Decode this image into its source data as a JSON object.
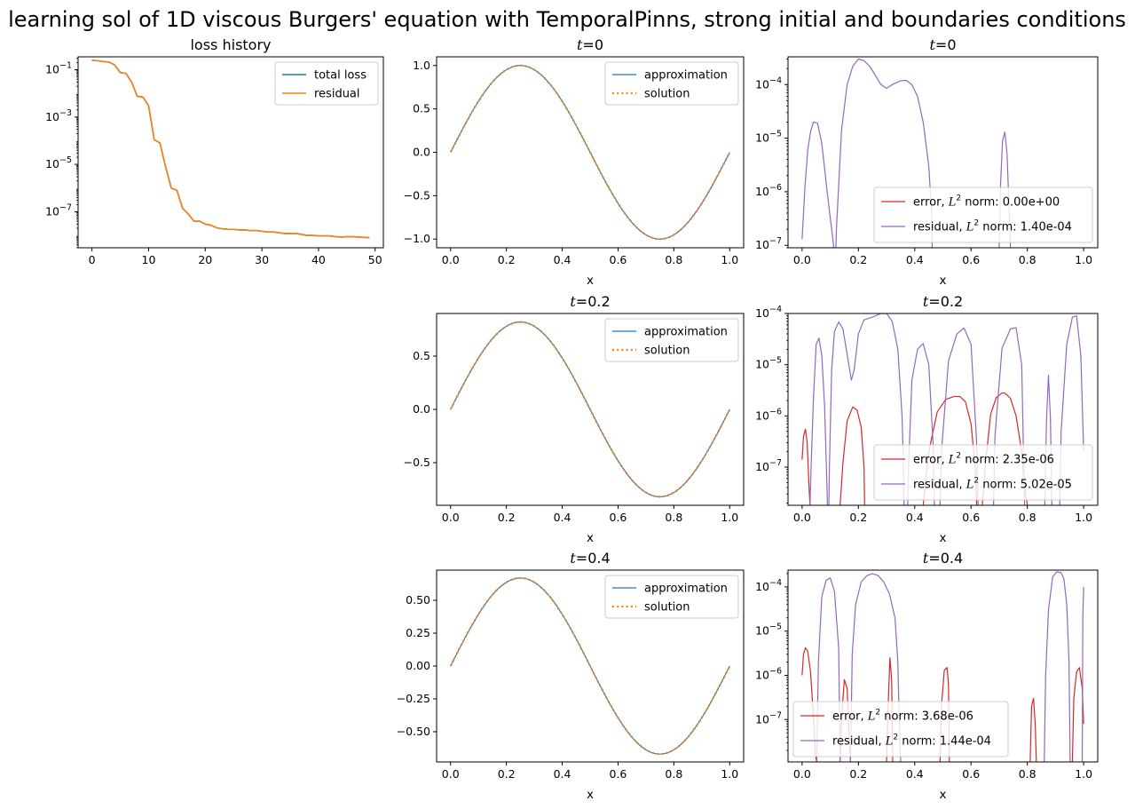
{
  "figure": {
    "suptitle": "learning sol of 1D viscous Burgers' equation with TemporalPinns, strong initial and boundaries conditions"
  },
  "colors": {
    "total_loss": "#1f77b4",
    "residual_loss": "#ff7f0e",
    "approximation": "#1f77b4",
    "solution": "#ff7f0e",
    "error": "#d62728",
    "residual": "#9467bd"
  },
  "chart_data": [
    {
      "id": "loss",
      "type": "line",
      "title": "loss history",
      "xlabel": "",
      "yscale": "log",
      "xlim": [
        -2.45,
        51.45
      ],
      "ylim": [
        3e-09,
        0.35
      ],
      "xticks": [
        0,
        10,
        20,
        30,
        40,
        50
      ],
      "yticks": [
        {
          "value": 0.1,
          "label": "10^-1"
        },
        {
          "value": 0.001,
          "label": "10^-3"
        },
        {
          "value": 1e-05,
          "label": "10^-5"
        },
        {
          "value": 1e-07,
          "label": "10^-7"
        }
      ],
      "legend_position": "upper right",
      "x": [
        0,
        1,
        2,
        3,
        4,
        5,
        6,
        7,
        8,
        9,
        10,
        11,
        12,
        13,
        14,
        15,
        16,
        17,
        18,
        19,
        20,
        21,
        22,
        23,
        24,
        25,
        26,
        27,
        28,
        29,
        30,
        31,
        32,
        33,
        34,
        35,
        36,
        37,
        38,
        39,
        40,
        41,
        42,
        43,
        44,
        45,
        46,
        47,
        48,
        49
      ],
      "series": [
        {
          "name": "total loss",
          "color_key": "total_loss",
          "width": 1.6,
          "dash": "",
          "values": [
            0.25,
            0.24,
            0.22,
            0.21,
            0.16,
            0.075,
            0.07,
            0.03,
            0.0075,
            0.007,
            0.003,
            0.00011,
            8e-05,
            8e-06,
            1e-06,
            8e-07,
            1.4e-07,
            8e-08,
            4e-08,
            4e-08,
            3e-08,
            2.7e-08,
            2.1e-08,
            1.9e-08,
            1.8e-08,
            1.8e-08,
            1.7e-08,
            1.7e-08,
            1.6e-08,
            1.6e-08,
            1.5e-08,
            1.4e-08,
            1.4e-08,
            1.3e-08,
            1.2e-08,
            1.2e-08,
            1.2e-08,
            1.1e-08,
            1e-08,
            1e-08,
            9.5e-09,
            9.5e-09,
            9.5e-09,
            8.8e-09,
            8.5e-09,
            8.8e-09,
            8.8e-09,
            8.5e-09,
            8.2e-09,
            8e-09
          ]
        },
        {
          "name": "residual",
          "color_key": "residual_loss",
          "width": 1.6,
          "dash": "",
          "values": [
            0.25,
            0.24,
            0.22,
            0.21,
            0.16,
            0.075,
            0.07,
            0.03,
            0.0075,
            0.007,
            0.003,
            0.00011,
            8e-05,
            8e-06,
            1e-06,
            8e-07,
            1.4e-07,
            8e-08,
            4e-08,
            4e-08,
            3e-08,
            2.7e-08,
            2.1e-08,
            1.9e-08,
            1.8e-08,
            1.8e-08,
            1.7e-08,
            1.7e-08,
            1.6e-08,
            1.6e-08,
            1.5e-08,
            1.4e-08,
            1.4e-08,
            1.3e-08,
            1.2e-08,
            1.2e-08,
            1.2e-08,
            1.1e-08,
            1e-08,
            1e-08,
            9.5e-09,
            9.5e-09,
            9.5e-09,
            8.8e-09,
            8.5e-09,
            8.8e-09,
            8.8e-09,
            8.5e-09,
            8.2e-09,
            8e-09
          ]
        }
      ]
    },
    {
      "id": "sol0",
      "type": "line",
      "title_var": "t",
      "title_value": "=0",
      "xlabel": "x",
      "xlim": [
        -0.05,
        1.05
      ],
      "ylim": [
        -1.1,
        1.1
      ],
      "xticks": [
        "0.0",
        "0.2",
        "0.4",
        "0.6",
        "0.8",
        "1.0"
      ],
      "yticks": [
        "-1.0",
        "-0.5",
        "0.0",
        "0.5",
        "1.0"
      ],
      "legend_position": "upper right",
      "function": "amplitude * sin(2*pi*x), x from 0 to 1",
      "amplitude": 1.0,
      "series": [
        {
          "name": "approximation",
          "color_key": "approximation"
        },
        {
          "name": "solution",
          "color_key": "solution"
        }
      ]
    },
    {
      "id": "sol1",
      "type": "line",
      "title_var": "t",
      "title_value": "=0.2",
      "xlabel": "x",
      "xlim": [
        -0.05,
        1.05
      ],
      "ylim": [
        -0.9,
        0.9
      ],
      "xticks": [
        "0.0",
        "0.2",
        "0.4",
        "0.6",
        "0.8",
        "1.0"
      ],
      "yticks": [
        "-0.5",
        "0.0",
        "0.5"
      ],
      "legend_position": "upper right",
      "function": "amplitude * sin(2*pi*x), x from 0 to 1",
      "amplitude": 0.82,
      "series": [
        {
          "name": "approximation",
          "color_key": "approximation"
        },
        {
          "name": "solution",
          "color_key": "solution"
        }
      ]
    },
    {
      "id": "sol2",
      "type": "line",
      "title_var": "t",
      "title_value": "=0.4",
      "xlabel": "x",
      "xlim": [
        -0.05,
        1.05
      ],
      "ylim": [
        -0.73,
        0.73
      ],
      "xticks": [
        "0.0",
        "0.2",
        "0.4",
        "0.6",
        "0.8",
        "1.0"
      ],
      "yticks": [
        "-0.50",
        "-0.25",
        "0.00",
        "0.25",
        "0.50"
      ],
      "legend_position": "upper right",
      "function": "amplitude * sin(2*pi*x), x from 0 to 1",
      "amplitude": 0.67,
      "series": [
        {
          "name": "approximation",
          "color_key": "approximation"
        },
        {
          "name": "solution",
          "color_key": "solution"
        }
      ]
    },
    {
      "id": "err0",
      "type": "line",
      "yscale": "log",
      "title_var": "t",
      "title_value": "=0",
      "xlabel": "x",
      "xlim": [
        -0.05,
        1.05
      ],
      "ylim": [
        9e-08,
        0.00033
      ],
      "xticks": [
        "0.0",
        "0.2",
        "0.4",
        "0.6",
        "0.8",
        "1.0"
      ],
      "yticks": [
        {
          "value": 0.0001,
          "label": "10^-4"
        },
        {
          "value": 1e-05,
          "label": "10^-5"
        },
        {
          "value": 1e-06,
          "label": "10^-6"
        },
        {
          "value": 1e-07,
          "label": "10^-7"
        }
      ],
      "legend_position": "lower right",
      "series": [
        {
          "name_prefix": "error, ",
          "name_var": "L",
          "name_sup": "2",
          "name_suffix": " norm: 0.00e+00",
          "color_key": "error",
          "x": [],
          "values": []
        },
        {
          "name_prefix": "residual, ",
          "name_var": "L",
          "name_sup": "2",
          "name_suffix": " norm: 1.40e-04",
          "color_key": "residual",
          "x": [
            0.0,
            0.01,
            0.02,
            0.03,
            0.04,
            0.055,
            0.07,
            0.09,
            0.11,
            0.112,
            "gap",
            0.12,
            0.122,
            0.14,
            0.16,
            0.18,
            0.2,
            0.22,
            0.24,
            0.26,
            0.28,
            0.3,
            0.32,
            0.35,
            0.37,
            0.39,
            0.41,
            0.43,
            0.45,
            0.46,
            0.462,
            "gap",
            0.7,
            0.705,
            0.712,
            0.72,
            0.728,
            0.735,
            0.74
          ],
          "values": [
            1.3e-07,
            1.2e-06,
            6e-06,
            1.3e-05,
            2e-05,
            1.9e-05,
            8e-06,
            9e-07,
            1.2e-07,
            9e-08,
            null,
            9e-08,
            2e-07,
            1.4e-05,
            0.0001,
            0.00022,
            0.0003,
            0.00028,
            0.00022,
            0.00015,
            0.0001,
            8.5e-05,
            0.0001,
            0.000118,
            0.00012,
            0.0001,
            6e-05,
            2e-05,
            3e-06,
            4e-07,
            9e-08,
            null,
            9e-08,
            1.4e-06,
            9e-06,
            1.3e-05,
            5e-06,
            5e-07,
            9e-08
          ]
        }
      ]
    },
    {
      "id": "err1",
      "type": "line",
      "yscale": "log",
      "title_var": "t",
      "title_value": "=0.2",
      "xlabel": "x",
      "xlim": [
        -0.05,
        1.05
      ],
      "ylim": [
        1.8e-08,
        0.0001
      ],
      "xticks": [
        "0.0",
        "0.2",
        "0.4",
        "0.6",
        "0.8",
        "1.0"
      ],
      "yticks": [
        {
          "value": 0.0001,
          "label": "10^-4"
        },
        {
          "value": 1e-05,
          "label": "10^-5"
        },
        {
          "value": 1e-06,
          "label": "10^-6"
        },
        {
          "value": 1e-07,
          "label": "10^-7"
        }
      ],
      "legend_position": "lower right",
      "series": [
        {
          "name_prefix": "error, ",
          "name_var": "L",
          "name_sup": "2",
          "name_suffix": " norm: 2.35e-06",
          "color_key": "error",
          "x": [
            0.0,
            0.005,
            0.012,
            0.018,
            0.024,
            0.028,
            "gap",
            0.135,
            0.145,
            0.16,
            0.18,
            0.195,
            0.21,
            0.22,
            0.222,
            "gap",
            0.43,
            0.45,
            0.48,
            0.51,
            0.54,
            0.56,
            0.58,
            0.6,
            0.615,
            0.62,
            "gap",
            0.64,
            0.65,
            0.67,
            0.69,
            0.71,
            0.72,
            0.74,
            0.76,
            0.78,
            0.79,
            0.8
          ],
          "values": [
            1.4e-07,
            4e-07,
            5.5e-07,
            3e-07,
            5e-08,
            1.8e-08,
            null,
            1.8e-08,
            1.2e-07,
            8e-07,
            1.5e-06,
            1.3e-06,
            6e-07,
            1e-07,
            1.8e-08,
            null,
            1.8e-08,
            2e-07,
            1.2e-06,
            2.1e-06,
            2.4e-06,
            2.4e-06,
            1.9e-06,
            7e-07,
            1e-07,
            1.8e-08,
            null,
            1.8e-08,
            1e-07,
            1.1e-06,
            2.3e-06,
            2.8e-06,
            2.8e-06,
            2.2e-06,
            1e-06,
            2e-07,
            4e-08,
            1.8e-08
          ]
        },
        {
          "name_prefix": "residual, ",
          "name_var": "L",
          "name_sup": "2",
          "name_suffix": " norm: 5.02e-05",
          "color_key": "residual",
          "x": [
            0.028,
            0.032,
            0.04,
            0.05,
            0.06,
            0.07,
            0.08,
            0.088,
            0.09,
            "gap",
            0.095,
            0.097,
            0.105,
            0.115,
            0.13,
            0.145,
            0.16,
            0.175,
            0.185,
            0.2,
            0.22,
            0.25,
            0.28,
            0.3,
            0.32,
            0.34,
            0.355,
            0.36,
            0.362,
            "gap",
            0.375,
            0.378,
            0.39,
            0.41,
            0.43,
            0.45,
            0.465,
            0.47,
            "gap",
            0.49,
            0.495,
            0.52,
            0.55,
            0.575,
            0.6,
            0.62,
            0.625,
            "gap",
            0.68,
            0.685,
            0.71,
            0.74,
            0.76,
            0.78,
            0.79,
            "gap",
            0.862,
            0.868,
            0.875,
            0.882,
            0.887,
            "gap",
            0.915,
            0.92,
            0.94,
            0.96,
            0.975,
            0.99,
            1.0
          ],
          "values": [
            1.8e-08,
            1e-07,
            2e-06,
            2.5e-05,
            3.3e-05,
            1.5e-05,
            1.5e-06,
            5e-08,
            1.8e-08,
            null,
            1.8e-08,
            1e-07,
            8e-06,
            4.5e-05,
            6.8e-05,
            5e-05,
            1.6e-05,
            5e-06,
            8e-06,
            4e-05,
            7.5e-05,
            8.5e-05,
            0.0001,
            0.0001,
            7e-05,
            2e-05,
            1e-06,
            1e-07,
            1.8e-08,
            null,
            1.8e-08,
            1e-07,
            5e-06,
            2e-05,
            2.6e-05,
            1e-05,
            3e-07,
            1.8e-08,
            null,
            1.8e-08,
            2e-07,
            1.2e-05,
            4e-05,
            5.2e-05,
            2.5e-05,
            3e-07,
            1.8e-08,
            null,
            1.8e-08,
            4e-07,
            2.1e-05,
            5e-05,
            5.3e-05,
            1e-05,
            1.8e-08,
            null,
            1.8e-08,
            8e-07,
            6.2e-06,
            9e-07,
            1.8e-08,
            null,
            1.8e-08,
            5e-07,
            2.5e-05,
            8.5e-05,
            9e-05,
            1.5e-05,
            2e-07
          ]
        }
      ]
    },
    {
      "id": "err2",
      "type": "line",
      "yscale": "log",
      "title_var": "t",
      "title_value": "=0.4",
      "xlabel": "x",
      "xlim": [
        -0.05,
        1.05
      ],
      "ylim": [
        1.1e-08,
        0.00024
      ],
      "xticks": [
        "0.0",
        "0.2",
        "0.4",
        "0.6",
        "0.8",
        "1.0"
      ],
      "yticks": [
        {
          "value": 0.0001,
          "label": "10^-4"
        },
        {
          "value": 1e-05,
          "label": "10^-5"
        },
        {
          "value": 1e-06,
          "label": "10^-6"
        },
        {
          "value": 1e-07,
          "label": "10^-7"
        }
      ],
      "legend_position": "lower left",
      "series": [
        {
          "name_prefix": "error, ",
          "name_var": "L",
          "name_sup": "2",
          "name_suffix": " norm: 3.68e-06",
          "color_key": "error",
          "x": [
            0.0,
            0.005,
            0.012,
            0.02,
            0.03,
            0.04,
            0.048,
            0.052,
            "gap",
            0.135,
            0.14,
            0.15,
            0.16,
            0.165,
            0.172,
            "gap",
            0.3,
            0.305,
            0.312,
            0.318,
            0.322,
            "gap",
            0.49,
            0.495,
            0.505,
            0.515,
            0.52,
            0.523,
            "gap",
            0.81,
            0.815,
            0.822,
            0.828,
            0.832,
            "gap",
            0.96,
            0.965,
            0.975,
            0.985,
            0.995,
            1.0
          ],
          "values": [
            1e-06,
            3e-06,
            4.2e-06,
            3.5e-06,
            1.2e-06,
            1.2e-07,
            1.5e-08,
            1.1e-08,
            null,
            1.1e-08,
            1e-07,
            8e-07,
            5e-07,
            8e-08,
            1.1e-08,
            null,
            1.1e-08,
            1.6e-07,
            2.5e-06,
            8e-07,
            1.1e-08,
            null,
            1.1e-08,
            2e-07,
            1.3e-06,
            1.5e-06,
            6e-07,
            1.1e-08,
            null,
            1.1e-08,
            2e-07,
            3e-07,
            8e-08,
            1.1e-08,
            null,
            1.1e-08,
            3e-07,
            1.2e-06,
            1.5e-06,
            5e-07,
            8e-08
          ]
        },
        {
          "name_prefix": "residual, ",
          "name_var": "L",
          "name_sup": "2",
          "name_suffix": " norm: 1.44e-04",
          "color_key": "residual",
          "x": [
            0.052,
            0.058,
            0.07,
            0.085,
            0.1,
            0.115,
            0.13,
            0.135,
            "gap",
            0.172,
            0.178,
            0.19,
            0.21,
            0.23,
            0.25,
            0.27,
            0.29,
            0.31,
            0.33,
            0.34,
            0.345,
            0.35,
            "gap",
            0.86,
            0.865,
            0.875,
            0.89,
            0.905,
            0.92,
            0.93,
            0.94,
            0.948,
            0.952,
            "gap",
            0.995,
            0.997,
            1.0
          ],
          "values": [
            1.1e-08,
            2e-06,
            6e-05,
            0.00014,
            0.00016,
            8e-05,
            4e-06,
            1.1e-08,
            null,
            1.1e-08,
            3e-06,
            4e-05,
            0.00013,
            0.00018,
            0.0002,
            0.00018,
            0.00013,
            7e-05,
            2e-05,
            2e-06,
            1e-07,
            1.1e-08,
            null,
            1.1e-08,
            1e-06,
            3e-05,
            0.00017,
            0.00022,
            0.00021,
            0.00015,
            4e-05,
            2e-06,
            1.1e-08,
            null,
            1.1e-08,
            2e-05,
            0.0001
          ]
        }
      ]
    }
  ]
}
